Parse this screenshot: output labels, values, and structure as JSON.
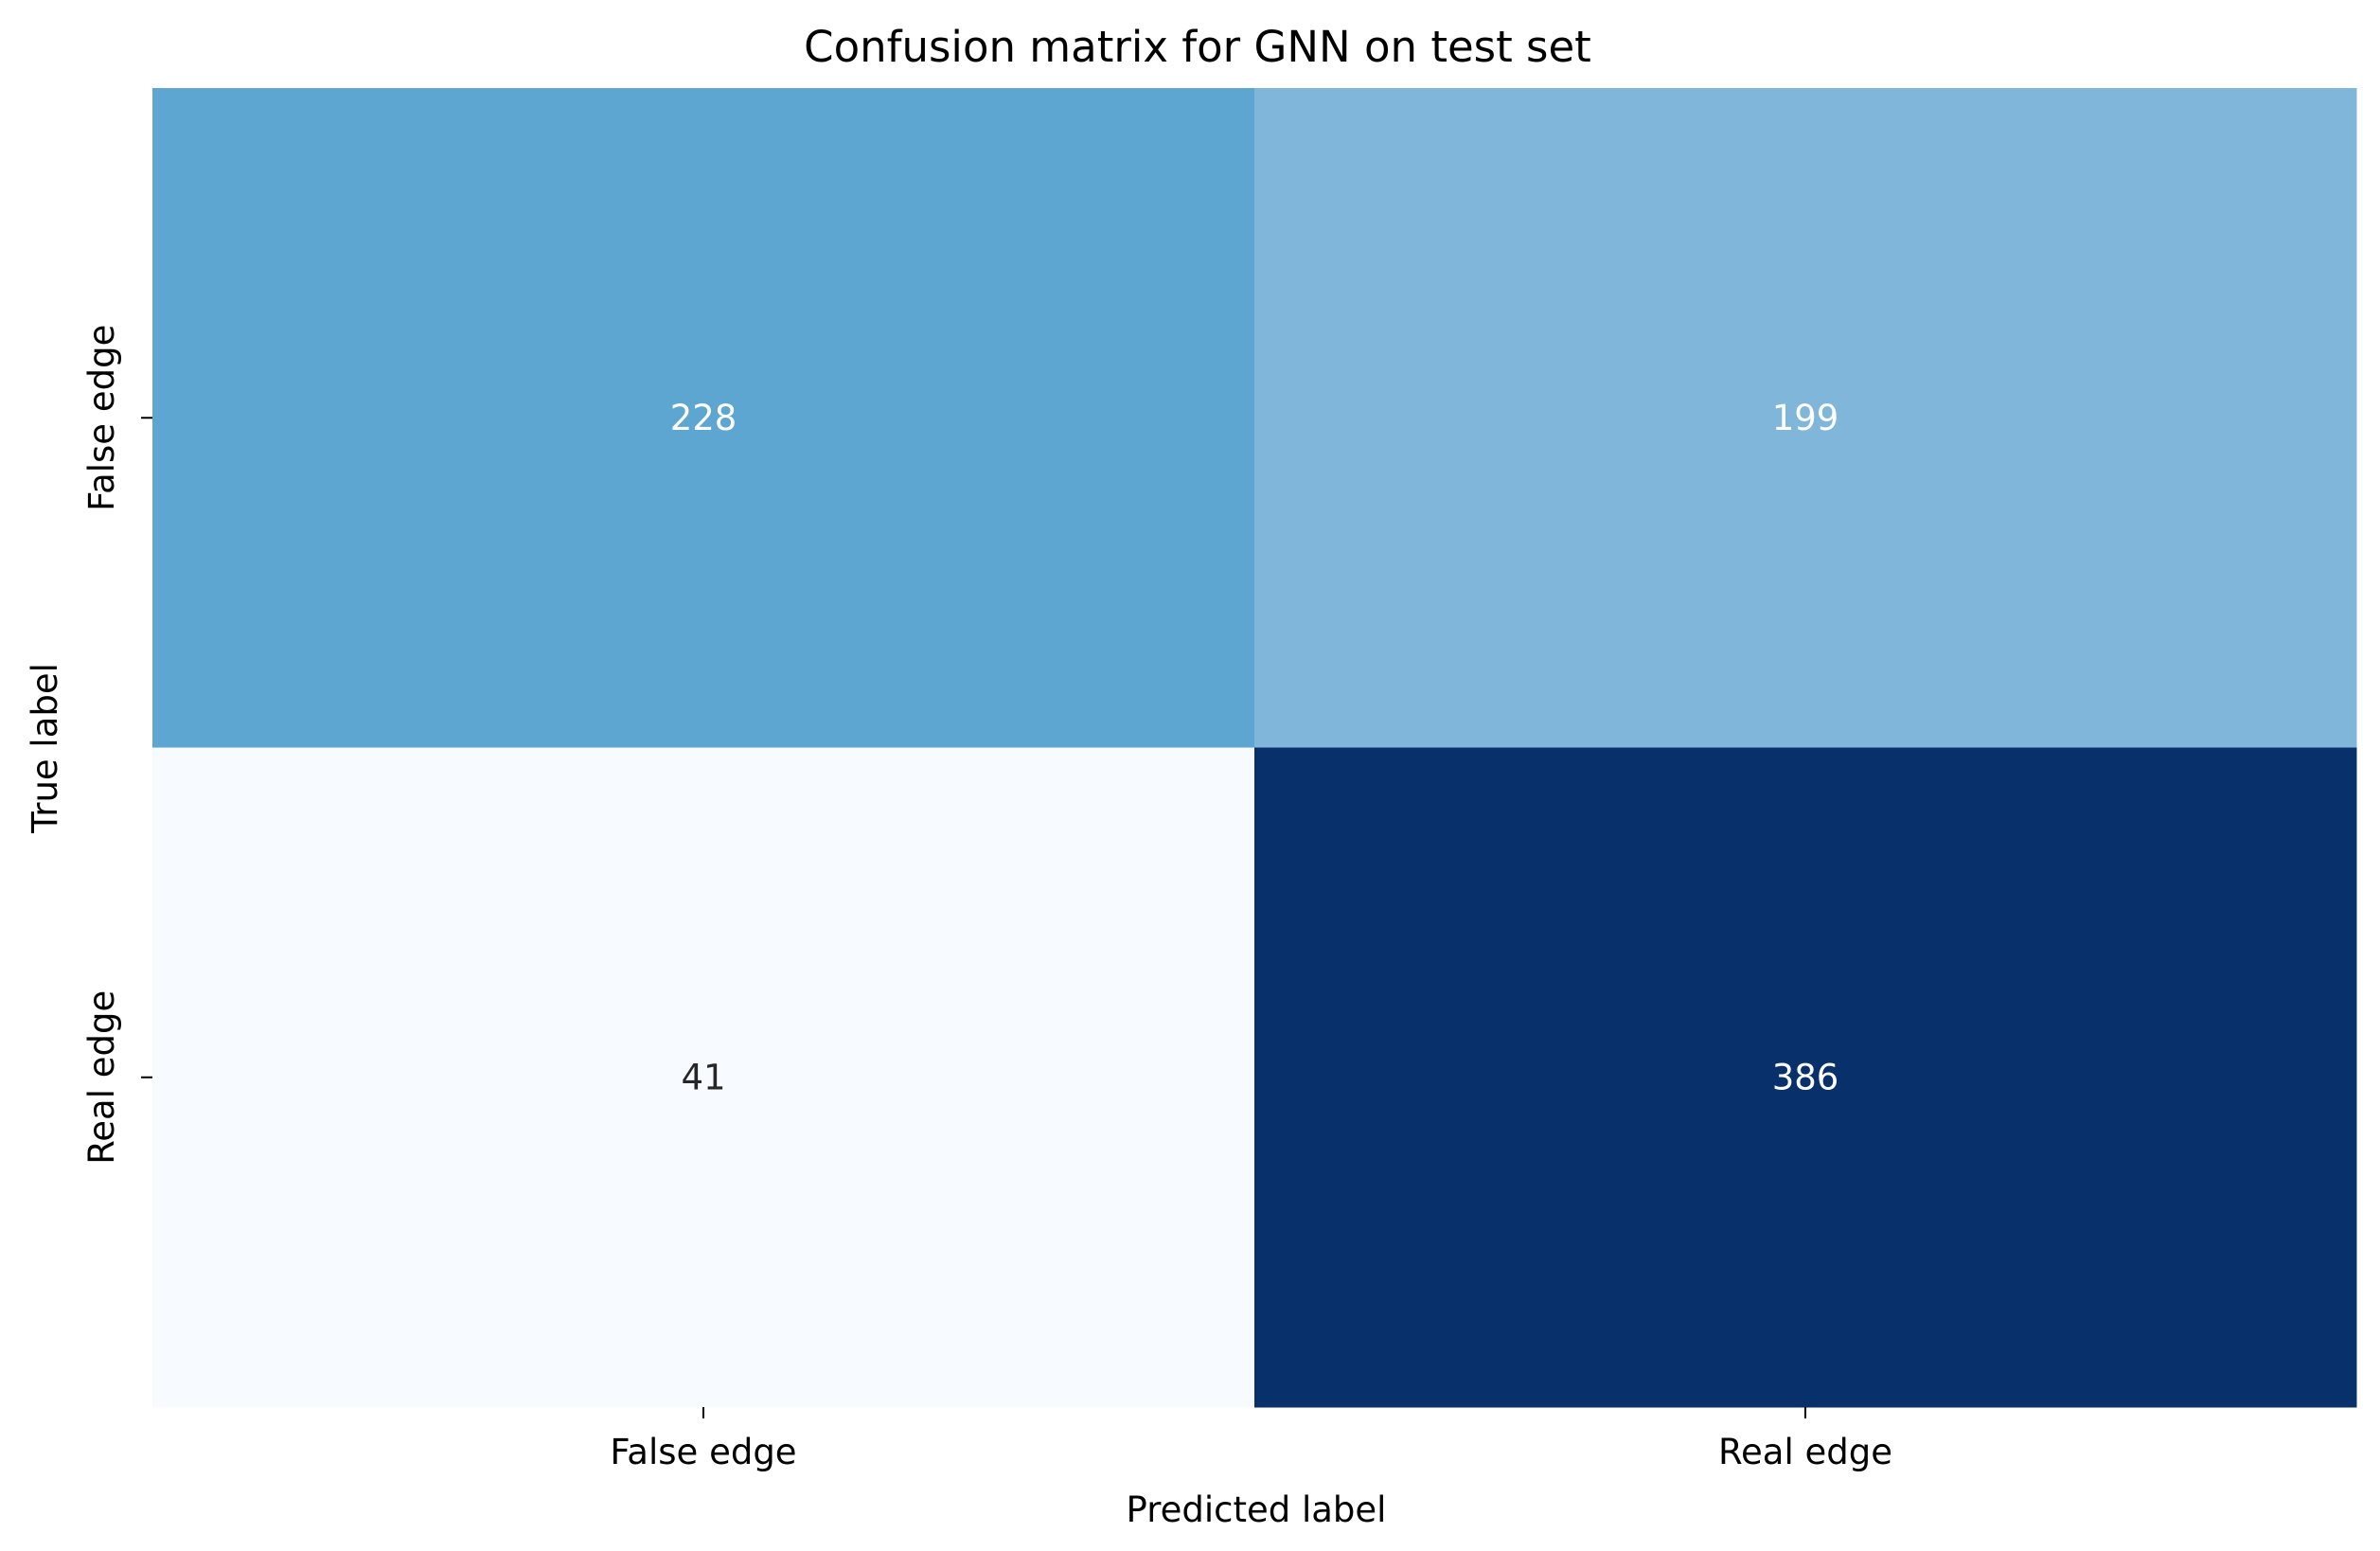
{
  "chart_data": {
    "type": "heatmap",
    "title": "Confusion matrix for GNN on test set",
    "xlabel": "Predicted label",
    "ylabel": "True label",
    "x_categories": [
      "False edge",
      "Real edge"
    ],
    "y_categories": [
      "False edge",
      "Real edge"
    ],
    "values": [
      [
        228,
        199
      ],
      [
        41,
        386
      ]
    ],
    "colormap": "Blues",
    "colors": {
      "cells": [
        [
          "#5ea6d2",
          "#80b6d9"
        ],
        [
          "#f7fbff",
          "#08306b"
        ]
      ],
      "annotation_light": "#ffffff",
      "annotation_dark": "#262626"
    },
    "colorbar": false,
    "grid": false
  }
}
